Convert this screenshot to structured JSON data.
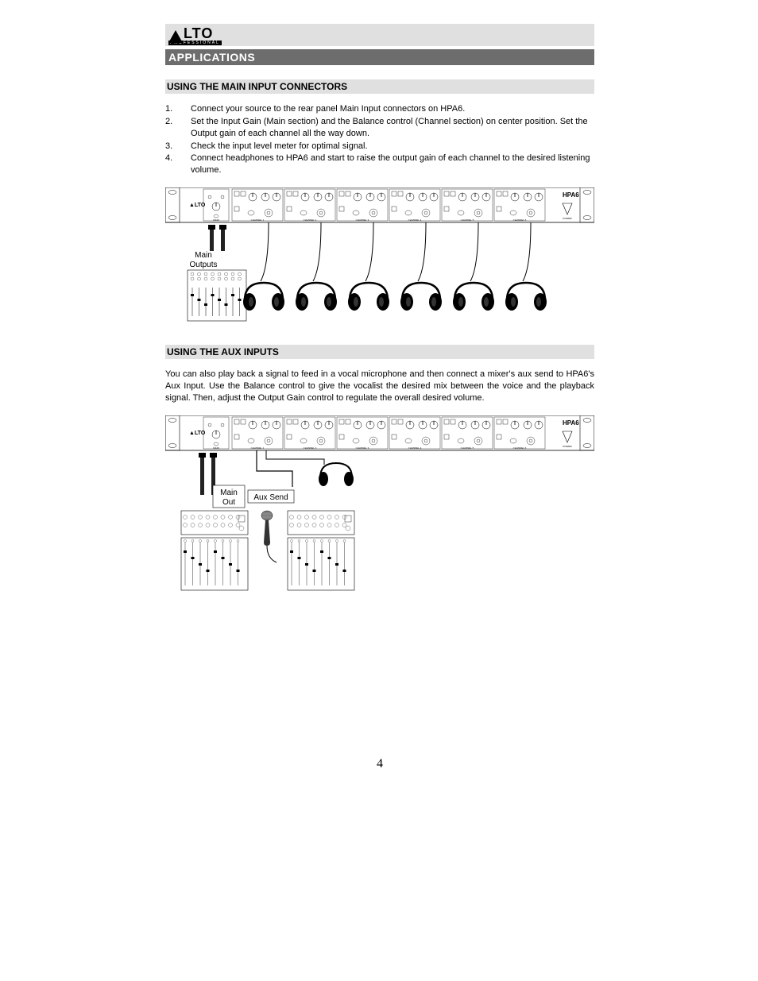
{
  "logo": {
    "text": "LTO",
    "subtext": "PROFESSIONAL"
  },
  "section_title": "APPLICATIONS",
  "section1": {
    "title": "USING THE MAIN INPUT CONNECTORS",
    "steps": [
      {
        "num": "1.",
        "text": "Connect your source to the rear panel Main Input connectors on HPA6."
      },
      {
        "num": "2.",
        "text": "Set the Input Gain (Main section) and the Balance control (Channel section) on center position. Set the Output gain of each channel all the way down."
      },
      {
        "num": "3.",
        "text": "Check the input level meter for optimal signal."
      },
      {
        "num": "4.",
        "text": "Connect headphones to HPA6 and start to raise the output gain of each channel to the desired listening volume."
      }
    ]
  },
  "section2": {
    "title": "USING THE AUX INPUTS",
    "body": "You can also play back a signal to feed in a vocal microphone and then connect a mixer's aux send to HPA6's Aux Input. Use the Balance control to give the vocalist the desired mix between the voice and the playback signal. Then, adjust the Output Gain control to regulate the overall desired volume."
  },
  "diagram1": {
    "device_label": "HPA6",
    "brand": "ALTO",
    "main_outputs_label": "Main\nOutputs",
    "channels": [
      "CHANNEL 1",
      "CHANNEL 2",
      "CHANNEL 3",
      "CHANNEL 4",
      "CHANNEL 5",
      "CHANNEL 6"
    ],
    "headphone_count": 6
  },
  "diagram2": {
    "device_label": "HPA6",
    "brand": "ALTO",
    "main_out_label": "Main\nOut",
    "aux_send_label": "Aux Send",
    "channels": [
      "CHANNEL 1",
      "CHANNEL 2",
      "CHANNEL 3",
      "CHANNEL 4",
      "CHANNEL 5",
      "CHANNEL 6"
    ]
  },
  "page_number": "4",
  "colors": {
    "header_gray": "#e0e0e0",
    "title_bar": "#6d6d6d",
    "text": "#000000",
    "bg": "#ffffff"
  }
}
